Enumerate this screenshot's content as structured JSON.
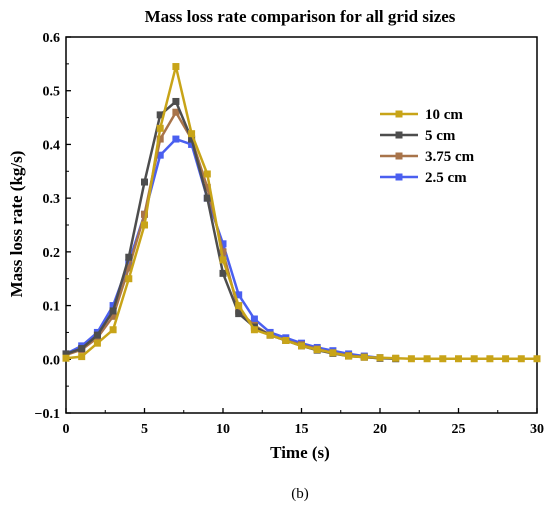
{
  "chart_data": {
    "type": "line",
    "title": "Mass loss rate comparison for all grid sizes",
    "xlabel": "Time (s)",
    "ylabel": "Mass loss rate (kg/s)",
    "caption": "(b)",
    "xlim": [
      0,
      30
    ],
    "ylim": [
      -0.1,
      0.6
    ],
    "xticks": [
      "0",
      "5",
      "10",
      "15",
      "20",
      "25",
      "30"
    ],
    "yticks": [
      "−0.1",
      "0.0",
      "0.1",
      "0.2",
      "0.3",
      "0.4",
      "0.5",
      "0.6"
    ],
    "legend_position": "right",
    "grid": false,
    "series": [
      {
        "name": "10 cm",
        "color": "#c8a418",
        "x": [
          0,
          1,
          2,
          3,
          4,
          5,
          6,
          7,
          8,
          9,
          10,
          11,
          12,
          13,
          14,
          15,
          16,
          17,
          18,
          19,
          20,
          21,
          22,
          23,
          24,
          25,
          26,
          27,
          28,
          29,
          30
        ],
        "y": [
          0.002,
          0.005,
          0.03,
          0.055,
          0.15,
          0.25,
          0.43,
          0.545,
          0.42,
          0.345,
          0.185,
          0.1,
          0.055,
          0.045,
          0.035,
          0.025,
          0.018,
          0.012,
          0.006,
          0.004,
          0.003,
          0.002,
          0.001,
          0.001,
          0.001,
          0.001,
          0.001,
          0.001,
          0.001,
          0.001,
          0.001
        ]
      },
      {
        "name": "5 cm",
        "color": "#4d4d4d",
        "x": [
          0,
          1,
          2,
          3,
          4,
          5,
          6,
          7,
          8,
          9,
          10,
          11,
          12,
          13,
          14,
          15,
          16,
          17,
          18,
          19,
          20,
          21
        ],
        "y": [
          0.01,
          0.02,
          0.045,
          0.09,
          0.19,
          0.33,
          0.455,
          0.48,
          0.41,
          0.3,
          0.16,
          0.085,
          0.06,
          0.045,
          0.035,
          0.025,
          0.017,
          0.011,
          0.006,
          0.004,
          0.002,
          0.001
        ]
      },
      {
        "name": "3.75 cm",
        "color": "#a8744a",
        "x": [
          0,
          1,
          2,
          3,
          4,
          5,
          6,
          7,
          8,
          9,
          10,
          11,
          12,
          13,
          14,
          15,
          16,
          17,
          18,
          19,
          20
        ],
        "y": [
          0.008,
          0.018,
          0.04,
          0.08,
          0.17,
          0.27,
          0.41,
          0.46,
          0.41,
          0.32,
          0.2,
          0.09,
          0.063,
          0.045,
          0.035,
          0.027,
          0.019,
          0.012,
          0.007,
          0.004,
          0.002
        ]
      },
      {
        "name": "2.5 cm",
        "color": "#4a5ff0",
        "x": [
          0,
          1,
          2,
          3,
          4,
          5,
          6,
          7,
          8,
          9,
          10,
          11,
          12,
          13,
          14,
          15,
          16,
          17,
          18,
          19,
          20
        ],
        "y": [
          0.01,
          0.025,
          0.05,
          0.1,
          0.18,
          0.27,
          0.38,
          0.41,
          0.4,
          0.3,
          0.215,
          0.12,
          0.075,
          0.05,
          0.04,
          0.03,
          0.022,
          0.016,
          0.01,
          0.006,
          0.003
        ]
      }
    ]
  }
}
